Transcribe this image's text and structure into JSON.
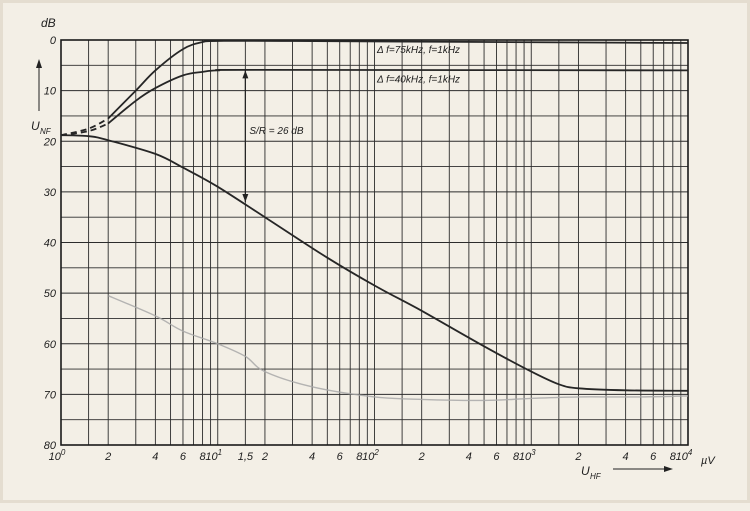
{
  "chart_data": {
    "type": "line",
    "title": "",
    "x_scale": "log",
    "x_range": [
      1,
      10000
    ],
    "y_range": [
      0,
      80
    ],
    "y_inverted": true,
    "grid": true,
    "y_unit_label": "dB",
    "y_axis_label": "U",
    "y_axis_label_sub": "NF",
    "x_axis_label": "U",
    "x_axis_label_sub": "HF",
    "x_unit_label": "µV",
    "y_ticks": [
      {
        "value": 0,
        "label": "0"
      },
      {
        "value": 10,
        "label": "10"
      },
      {
        "value": 20,
        "label": "20"
      },
      {
        "value": 30,
        "label": "30"
      },
      {
        "value": 40,
        "label": "40"
      },
      {
        "value": 50,
        "label": "50"
      },
      {
        "value": 60,
        "label": "60"
      },
      {
        "value": 70,
        "label": "70"
      },
      {
        "value": 80,
        "label": "80"
      }
    ],
    "x_ticks": [
      {
        "value": 1,
        "base": "10",
        "exp": "0"
      },
      {
        "value": 2,
        "base": "2",
        "exp": ""
      },
      {
        "value": 4,
        "base": "4",
        "exp": ""
      },
      {
        "value": 6,
        "base": "6",
        "exp": ""
      },
      {
        "value": 8,
        "base": "8",
        "exp": ""
      },
      {
        "value": 10,
        "base": "10",
        "exp": "1"
      },
      {
        "value": 15,
        "base": "1,5",
        "exp": ""
      },
      {
        "value": 20,
        "base": "2",
        "exp": ""
      },
      {
        "value": 40,
        "base": "4",
        "exp": ""
      },
      {
        "value": 60,
        "base": "6",
        "exp": ""
      },
      {
        "value": 80,
        "base": "8",
        "exp": ""
      },
      {
        "value": 100,
        "base": "10",
        "exp": "2"
      },
      {
        "value": 200,
        "base": "2",
        "exp": ""
      },
      {
        "value": 400,
        "base": "4",
        "exp": ""
      },
      {
        "value": 600,
        "base": "6",
        "exp": ""
      },
      {
        "value": 800,
        "base": "8",
        "exp": ""
      },
      {
        "value": 1000,
        "base": "10",
        "exp": "3"
      },
      {
        "value": 2000,
        "base": "2",
        "exp": ""
      },
      {
        "value": 4000,
        "base": "4",
        "exp": ""
      },
      {
        "value": 6000,
        "base": "6",
        "exp": ""
      },
      {
        "value": 8000,
        "base": "8",
        "exp": ""
      },
      {
        "value": 10000,
        "base": "10",
        "exp": "4"
      }
    ],
    "x_gridlines": [
      1,
      1.5,
      2,
      3,
      4,
      5,
      6,
      7,
      8,
      9,
      10,
      15,
      20,
      30,
      40,
      50,
      60,
      70,
      80,
      90,
      100,
      150,
      200,
      300,
      400,
      500,
      600,
      700,
      800,
      900,
      1000,
      1500,
      2000,
      3000,
      4000,
      5000,
      6000,
      7000,
      8000,
      9000,
      10000
    ],
    "series": [
      {
        "label": "Δ f=75kHz, f=1kHz",
        "style": "solid",
        "points": [
          [
            2,
            15.5
          ],
          [
            3,
            10
          ],
          [
            4,
            6
          ],
          [
            6,
            1.8
          ],
          [
            8,
            0.4
          ],
          [
            10,
            0.2
          ],
          [
            30,
            0.2
          ],
          [
            10000,
            0.6
          ]
        ],
        "dashed_start": [
          [
            1,
            18.8
          ],
          [
            1.5,
            17.5
          ],
          [
            2,
            15.5
          ]
        ]
      },
      {
        "label": "Δ f=40kHz, f=1kHz",
        "style": "solid",
        "points": [
          [
            2,
            16.5
          ],
          [
            3,
            12
          ],
          [
            4,
            9.5
          ],
          [
            6,
            7
          ],
          [
            8,
            6.3
          ],
          [
            10,
            6
          ],
          [
            20,
            5.9
          ],
          [
            10000,
            6
          ]
        ],
        "dashed_start": [
          [
            1,
            18.8
          ],
          [
            1.5,
            18
          ],
          [
            2,
            16.5
          ]
        ]
      },
      {
        "label": "",
        "style": "solid",
        "points": [
          [
            1,
            18.8
          ],
          [
            1.5,
            19
          ],
          [
            2,
            19.8
          ],
          [
            4,
            22.5
          ],
          [
            6,
            25.2
          ],
          [
            10,
            29
          ],
          [
            20,
            35
          ],
          [
            50,
            43
          ],
          [
            100,
            48.5
          ],
          [
            200,
            53.5
          ],
          [
            500,
            60.5
          ],
          [
            1000,
            65.5
          ],
          [
            1500,
            68
          ],
          [
            2000,
            68.8
          ],
          [
            4000,
            69.2
          ],
          [
            10000,
            69.3
          ]
        ]
      },
      {
        "label": "",
        "style": "faint",
        "points": [
          [
            2,
            50.5
          ],
          [
            4,
            54.5
          ],
          [
            6,
            57.5
          ],
          [
            10,
            60
          ],
          [
            15,
            62.5
          ],
          [
            20,
            65.5
          ],
          [
            40,
            68.5
          ],
          [
            100,
            70.5
          ],
          [
            200,
            71
          ],
          [
            500,
            71.2
          ],
          [
            1000,
            70.8
          ],
          [
            2000,
            70.5
          ],
          [
            5000,
            70.5
          ],
          [
            10000,
            70.3
          ]
        ]
      }
    ],
    "annotations": [
      {
        "text": "S/R = 26 dB",
        "x_start": 15,
        "y_from": 6,
        "y_to": 32
      }
    ]
  }
}
